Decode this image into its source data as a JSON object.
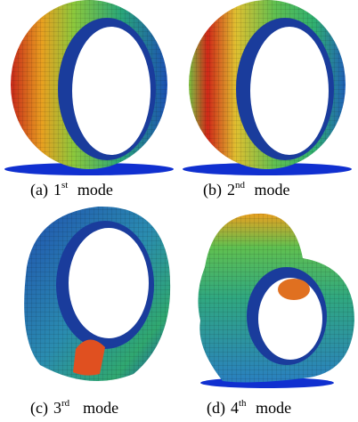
{
  "panels": [
    {
      "label": "(a)",
      "ordinal": "1",
      "suffix": "st",
      "word": "mode"
    },
    {
      "label": "(b)",
      "ordinal": "2",
      "suffix": "nd",
      "word": "mode"
    },
    {
      "label": "(c)",
      "ordinal": "3",
      "suffix": "rd",
      "word": "mode"
    },
    {
      "label": "(d)",
      "ordinal": "4",
      "suffix": "th",
      "word": "mode"
    }
  ]
}
